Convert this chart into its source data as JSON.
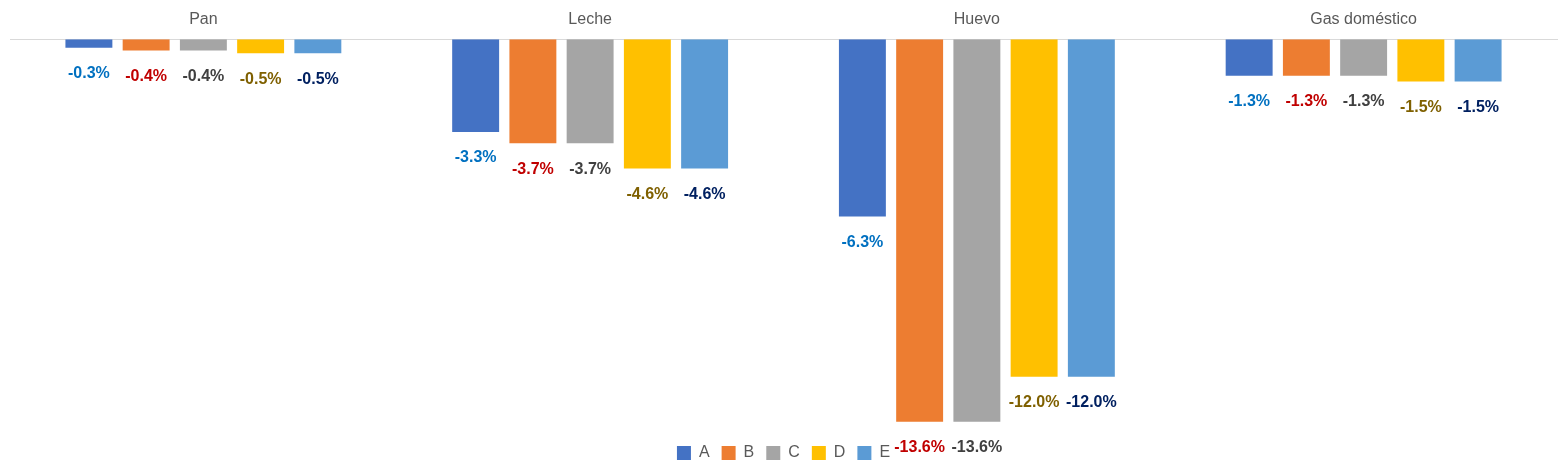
{
  "chart_data": {
    "type": "bar",
    "categories": [
      "Pan",
      "Leche",
      "Huevo",
      "Gas doméstico"
    ],
    "series": [
      {
        "name": "A",
        "color": "#4472c4",
        "values": [
          -0.3,
          -3.3,
          -6.3,
          -1.3
        ],
        "value_labels": [
          "-0.3%",
          "-3.3%",
          "-6.3%",
          "-1.3%"
        ]
      },
      {
        "name": "B",
        "color": "#ed7d31",
        "values": [
          -0.4,
          -3.7,
          -13.6,
          -1.3
        ],
        "value_labels": [
          "-0.4%",
          "-3.7%",
          "-13.6%",
          "-1.3%"
        ]
      },
      {
        "name": "C",
        "color": "#a5a5a5",
        "values": [
          -0.4,
          -3.7,
          -13.6,
          -1.3
        ],
        "value_labels": [
          "-0.4%",
          "-3.7%",
          "-13.6%",
          "-1.3%"
        ]
      },
      {
        "name": "D",
        "color": "#ffc000",
        "values": [
          -0.5,
          -4.6,
          -12.0,
          -1.5
        ],
        "value_labels": [
          "-0.5%",
          "-4.6%",
          "-12.0%",
          "-1.5%"
        ]
      },
      {
        "name": "E",
        "color": "#5b9bd5",
        "values": [
          -0.5,
          -4.6,
          -12.0,
          -1.5
        ],
        "value_labels": [
          "-0.5%",
          "-4.6%",
          "-12.0%",
          "-1.5%"
        ]
      }
    ],
    "legend": "bottom",
    "grid": false
  }
}
